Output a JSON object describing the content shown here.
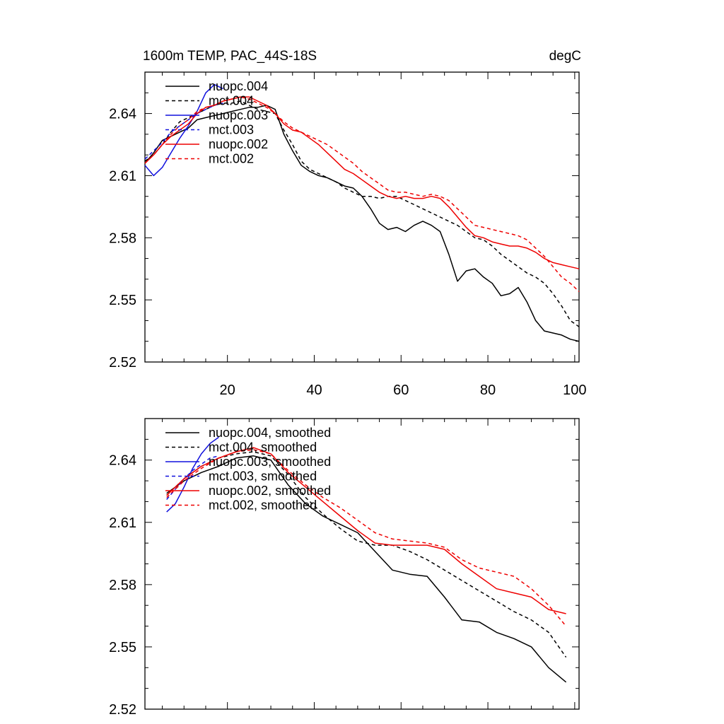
{
  "chart_data": [
    {
      "type": "line",
      "title": "1600m TEMP, PAC_44S-18S",
      "units": "degC",
      "xlim": [
        1,
        101
      ],
      "ylim": [
        2.52,
        2.66
      ],
      "xticks": [
        {
          "value": 20,
          "label": "20"
        },
        {
          "value": 40,
          "label": "40"
        },
        {
          "value": 60,
          "label": "60"
        },
        {
          "value": 80,
          "label": "80"
        },
        {
          "value": 100,
          "label": "100"
        }
      ],
      "yticks": [
        {
          "value": 2.52,
          "label": "2.52"
        },
        {
          "value": 2.55,
          "label": "2.55"
        },
        {
          "value": 2.58,
          "label": "2.58"
        },
        {
          "value": 2.61,
          "label": "2.61"
        },
        {
          "value": 2.64,
          "label": "2.64"
        }
      ],
      "legend": "top-left",
      "series": [
        {
          "name": "nuopc.004",
          "color": "#000000",
          "dash": "solid",
          "x": [
            1,
            3,
            5,
            7,
            9,
            11,
            13,
            15,
            17,
            19,
            21,
            23,
            25,
            27,
            29,
            31,
            33,
            35,
            37,
            39,
            41,
            43,
            45,
            47,
            49,
            51,
            53,
            55,
            57,
            59,
            61,
            63,
            65,
            67,
            69,
            71,
            73,
            75,
            77,
            79,
            81,
            83,
            85,
            87,
            89,
            91,
            93,
            95,
            97,
            99,
            101
          ],
          "y": [
            2.616,
            2.621,
            2.627,
            2.629,
            2.631,
            2.633,
            2.637,
            2.638,
            2.639,
            2.64,
            2.641,
            2.642,
            2.643,
            2.643,
            2.644,
            2.642,
            2.63,
            2.622,
            2.615,
            2.612,
            2.61,
            2.609,
            2.607,
            2.605,
            2.604,
            2.6,
            2.594,
            2.587,
            2.584,
            2.585,
            2.583,
            2.586,
            2.588,
            2.586,
            2.583,
            2.572,
            2.559,
            2.564,
            2.565,
            2.561,
            2.558,
            2.552,
            2.553,
            2.556,
            2.549,
            2.54,
            2.535,
            2.534,
            2.533,
            2.531,
            2.53
          ]
        },
        {
          "name": "mct.004",
          "color": "#000000",
          "dash": "dashed",
          "x": [
            1,
            3,
            5,
            7,
            9,
            11,
            13,
            15,
            17,
            19,
            21,
            23,
            25,
            27,
            29,
            31,
            33,
            35,
            37,
            39,
            41,
            43,
            45,
            47,
            49,
            51,
            53,
            55,
            57,
            59,
            61,
            63,
            65,
            67,
            69,
            71,
            73,
            75,
            77,
            79,
            81,
            83,
            85,
            87,
            89,
            91,
            93,
            95,
            97,
            99,
            101
          ],
          "y": [
            2.617,
            2.62,
            2.625,
            2.631,
            2.636,
            2.638,
            2.64,
            2.642,
            2.644,
            2.645,
            2.645,
            2.646,
            2.644,
            2.642,
            2.641,
            2.64,
            2.632,
            2.625,
            2.617,
            2.613,
            2.611,
            2.609,
            2.607,
            2.604,
            2.602,
            2.6,
            2.6,
            2.599,
            2.6,
            2.6,
            2.598,
            2.596,
            2.594,
            2.592,
            2.59,
            2.588,
            2.586,
            2.583,
            2.58,
            2.579,
            2.576,
            2.572,
            2.569,
            2.566,
            2.563,
            2.561,
            2.558,
            2.553,
            2.547,
            2.54,
            2.537
          ]
        },
        {
          "name": "nuopc.003",
          "color": "#1010dd",
          "dash": "solid",
          "x": [
            1,
            3,
            5,
            7,
            9,
            11,
            13,
            15,
            17,
            19
          ],
          "y": [
            2.615,
            2.61,
            2.614,
            2.621,
            2.628,
            2.634,
            2.641,
            2.65,
            2.654,
            2.652
          ]
        },
        {
          "name": "mct.003",
          "color": "#1010dd",
          "dash": "dashed",
          "x": [
            1,
            3,
            5,
            7,
            9,
            11,
            13,
            15,
            17,
            19
          ],
          "y": [
            2.618,
            2.622,
            2.626,
            2.631,
            2.634,
            2.637,
            2.64,
            2.642,
            2.644,
            2.645
          ]
        },
        {
          "name": "nuopc.002",
          "color": "#ee0000",
          "dash": "solid",
          "x": [
            1,
            3,
            5,
            7,
            9,
            11,
            13,
            15,
            17,
            19,
            21,
            23,
            25,
            27,
            29,
            31,
            33,
            35,
            37,
            39,
            41,
            43,
            45,
            47,
            49,
            51,
            53,
            55,
            57,
            59,
            61,
            63,
            65,
            67,
            69,
            71,
            73,
            75,
            77,
            79,
            81,
            83,
            85,
            87,
            89,
            91,
            93,
            95,
            97,
            99,
            101
          ],
          "y": [
            2.616,
            2.62,
            2.625,
            2.629,
            2.632,
            2.635,
            2.64,
            2.643,
            2.644,
            2.646,
            2.647,
            2.648,
            2.648,
            2.646,
            2.644,
            2.64,
            2.635,
            2.632,
            2.631,
            2.628,
            2.625,
            2.621,
            2.617,
            2.613,
            2.611,
            2.608,
            2.605,
            2.602,
            2.6,
            2.599,
            2.6,
            2.599,
            2.599,
            2.6,
            2.599,
            2.595,
            2.59,
            2.585,
            2.581,
            2.58,
            2.578,
            2.577,
            2.576,
            2.576,
            2.575,
            2.573,
            2.57,
            2.568,
            2.567,
            2.566,
            2.565
          ]
        },
        {
          "name": "mct.002",
          "color": "#ee0000",
          "dash": "dashed",
          "x": [
            1,
            3,
            5,
            7,
            9,
            11,
            13,
            15,
            17,
            19,
            21,
            23,
            25,
            27,
            29,
            31,
            33,
            35,
            37,
            39,
            41,
            43,
            45,
            47,
            49,
            51,
            53,
            55,
            57,
            59,
            61,
            63,
            65,
            67,
            69,
            71,
            73,
            75,
            77,
            79,
            81,
            83,
            85,
            87,
            89,
            91,
            93,
            95,
            97,
            99,
            101
          ],
          "y": [
            2.616,
            2.62,
            2.625,
            2.63,
            2.634,
            2.637,
            2.641,
            2.643,
            2.644,
            2.646,
            2.647,
            2.648,
            2.647,
            2.645,
            2.643,
            2.64,
            2.636,
            2.633,
            2.631,
            2.629,
            2.627,
            2.625,
            2.622,
            2.619,
            2.616,
            2.612,
            2.609,
            2.606,
            2.603,
            2.602,
            2.602,
            2.601,
            2.6,
            2.601,
            2.6,
            2.598,
            2.594,
            2.59,
            2.586,
            2.585,
            2.584,
            2.583,
            2.582,
            2.581,
            2.579,
            2.575,
            2.571,
            2.566,
            2.561,
            2.558,
            2.554
          ]
        }
      ]
    },
    {
      "type": "line",
      "title": "",
      "units": "",
      "xlim": [
        1,
        101
      ],
      "ylim": [
        2.52,
        2.66
      ],
      "xticks": [
        {
          "value": 20,
          "label": ""
        },
        {
          "value": 40,
          "label": ""
        },
        {
          "value": 60,
          "label": ""
        },
        {
          "value": 80,
          "label": ""
        },
        {
          "value": 100,
          "label": ""
        }
      ],
      "yticks": [
        {
          "value": 2.52,
          "label": "2.52"
        },
        {
          "value": 2.55,
          "label": "2.55"
        },
        {
          "value": 2.58,
          "label": "2.58"
        },
        {
          "value": 2.61,
          "label": "2.61"
        },
        {
          "value": 2.64,
          "label": "2.64"
        }
      ],
      "legend": "top-left",
      "series": [
        {
          "name": "nuopc.004, smoothed",
          "color": "#000000",
          "dash": "solid",
          "x": [
            6,
            10,
            14,
            18,
            22,
            26,
            30,
            34,
            38,
            42,
            46,
            50,
            54,
            58,
            62,
            66,
            70,
            74,
            78,
            82,
            86,
            90,
            94,
            98
          ],
          "y": [
            2.624,
            2.63,
            2.634,
            2.637,
            2.641,
            2.642,
            2.64,
            2.628,
            2.619,
            2.613,
            2.609,
            2.605,
            2.596,
            2.587,
            2.585,
            2.584,
            2.574,
            2.563,
            2.562,
            2.557,
            2.554,
            2.55,
            2.54,
            2.533
          ]
        },
        {
          "name": "mct.004, smoothed",
          "color": "#000000",
          "dash": "dashed",
          "x": [
            6,
            10,
            14,
            18,
            22,
            26,
            30,
            34,
            38,
            42,
            46,
            50,
            54,
            58,
            62,
            66,
            70,
            74,
            78,
            82,
            86,
            90,
            94,
            98
          ],
          "y": [
            2.623,
            2.631,
            2.637,
            2.641,
            2.643,
            2.644,
            2.642,
            2.633,
            2.622,
            2.614,
            2.607,
            2.601,
            2.599,
            2.599,
            2.596,
            2.592,
            2.587,
            2.582,
            2.577,
            2.572,
            2.567,
            2.563,
            2.557,
            2.545
          ]
        },
        {
          "name": "nuopc.003, smoothed",
          "color": "#1010dd",
          "dash": "solid",
          "x": [
            6,
            8,
            10,
            12,
            14,
            16,
            18
          ],
          "y": [
            2.615,
            2.619,
            2.627,
            2.636,
            2.643,
            2.648,
            2.651
          ]
        },
        {
          "name": "mct.003, smoothed",
          "color": "#1010dd",
          "dash": "dashed",
          "x": [
            6,
            8,
            10,
            12,
            14,
            16,
            18
          ],
          "y": [
            2.621,
            2.626,
            2.631,
            2.635,
            2.638,
            2.641,
            2.642
          ]
        },
        {
          "name": "nuopc.002, smoothed",
          "color": "#ee0000",
          "dash": "solid",
          "x": [
            6,
            10,
            14,
            18,
            22,
            26,
            30,
            34,
            38,
            42,
            46,
            50,
            54,
            58,
            62,
            66,
            70,
            74,
            78,
            82,
            86,
            90,
            94,
            98
          ],
          "y": [
            2.623,
            2.631,
            2.637,
            2.641,
            2.644,
            2.646,
            2.643,
            2.634,
            2.627,
            2.62,
            2.613,
            2.606,
            2.6,
            2.599,
            2.599,
            2.599,
            2.597,
            2.59,
            2.584,
            2.578,
            2.576,
            2.574,
            2.568,
            2.566
          ]
        },
        {
          "name": "mct.002, smoothed",
          "color": "#ee0000",
          "dash": "dashed",
          "x": [
            6,
            10,
            14,
            18,
            22,
            26,
            30,
            34,
            38,
            42,
            46,
            50,
            54,
            58,
            62,
            66,
            70,
            74,
            78,
            82,
            86,
            90,
            94,
            98
          ],
          "y": [
            2.622,
            2.63,
            2.636,
            2.641,
            2.644,
            2.645,
            2.643,
            2.635,
            2.628,
            2.622,
            2.617,
            2.611,
            2.605,
            2.602,
            2.601,
            2.6,
            2.598,
            2.592,
            2.588,
            2.586,
            2.584,
            2.578,
            2.57,
            2.56
          ]
        }
      ]
    }
  ]
}
